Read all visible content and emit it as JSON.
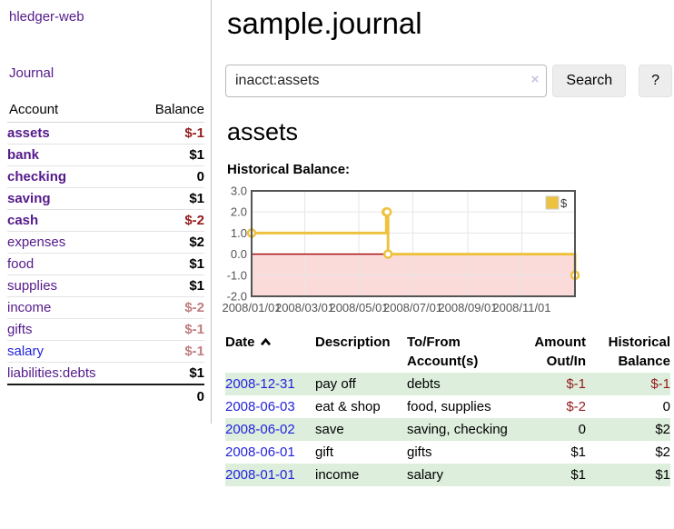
{
  "colors": {
    "purple": "#551a8b",
    "blue": "#2323dd",
    "negative": "#941b1b",
    "negative_muted": "#c17d7d",
    "row_green": "#ddeedd"
  },
  "sidebar": {
    "brand": "hledger-web",
    "journal_label": "Journal",
    "accounts": {
      "header_account": "Account",
      "header_balance": "Balance",
      "rows": [
        {
          "name": "assets",
          "balance": "$-1"
        },
        {
          "name": "bank",
          "balance": "$1"
        },
        {
          "name": "checking",
          "balance": "0"
        },
        {
          "name": "saving",
          "balance": "$1"
        },
        {
          "name": "cash",
          "balance": "$-2"
        },
        {
          "name": "expenses",
          "balance": "$2"
        },
        {
          "name": "food",
          "balance": "$1"
        },
        {
          "name": "supplies",
          "balance": "$1"
        },
        {
          "name": "income",
          "balance": "$-2"
        },
        {
          "name": "gifts",
          "balance": "$-1"
        },
        {
          "name": "salary",
          "balance": "$-1"
        },
        {
          "name": "liabilities:debts",
          "balance": "$1"
        }
      ],
      "total": "0"
    }
  },
  "main": {
    "title": "sample.journal",
    "search": {
      "value": "inacct:assets",
      "clear": "×",
      "button": "Search",
      "help": "?"
    },
    "account_heading": "assets",
    "chart_label": "Historical Balance:",
    "register": {
      "headers": {
        "date": "Date",
        "description": "Description",
        "tofrom1": "To/From",
        "tofrom2": "Account(s)",
        "amount1": "Amount",
        "amount2": "Out/In",
        "balance1": "Historical",
        "balance2": "Balance"
      },
      "rows": [
        {
          "date": "2008-12-31",
          "description": "pay off",
          "accounts": "debts",
          "amount": "$-1",
          "balance": "$-1"
        },
        {
          "date": "2008-06-03",
          "description": "eat & shop",
          "accounts": "food, supplies",
          "amount": "$-2",
          "balance": "0"
        },
        {
          "date": "2008-06-02",
          "description": "save",
          "accounts": "saving, checking",
          "amount": "0",
          "balance": "$2"
        },
        {
          "date": "2008-06-01",
          "description": "gift",
          "accounts": "gifts",
          "amount": "$1",
          "balance": "$2"
        },
        {
          "date": "2008-01-01",
          "description": "income",
          "accounts": "salary",
          "amount": "$1",
          "balance": "$1"
        }
      ]
    }
  },
  "chart_data": {
    "type": "line",
    "step": true,
    "title": "Historical Balance",
    "series": [
      {
        "name": "$",
        "points": [
          [
            "2008-01-01",
            1
          ],
          [
            "2008-06-01",
            2
          ],
          [
            "2008-06-02",
            2
          ],
          [
            "2008-06-03",
            0
          ],
          [
            "2008-12-31",
            -1
          ]
        ]
      }
    ],
    "xlim": [
      "2008-01-01",
      "2008-12-31"
    ],
    "ylim": [
      -2,
      3
    ],
    "x_ticks": [
      "2008/01/01",
      "2008/03/01",
      "2008/05/01",
      "2008/07/01",
      "2008/09/01",
      "2008/11/01"
    ],
    "y_ticks": [
      "3.0",
      "2.0",
      "1.0",
      "0.0",
      "-1.0",
      "-2.0"
    ],
    "legend": {
      "label": "$",
      "position": "top-right"
    },
    "negative_region": true,
    "colors": {
      "line": "#edc240",
      "marker_fill": "#ffffff",
      "negative_fill": "#fbdada",
      "zero_line": "#a40000",
      "grid": "#e6e6e6",
      "border": "#545454",
      "axis_text": "#545454",
      "legend_text": "#3a3a3a",
      "legend_box_border": "#cccccc"
    }
  }
}
